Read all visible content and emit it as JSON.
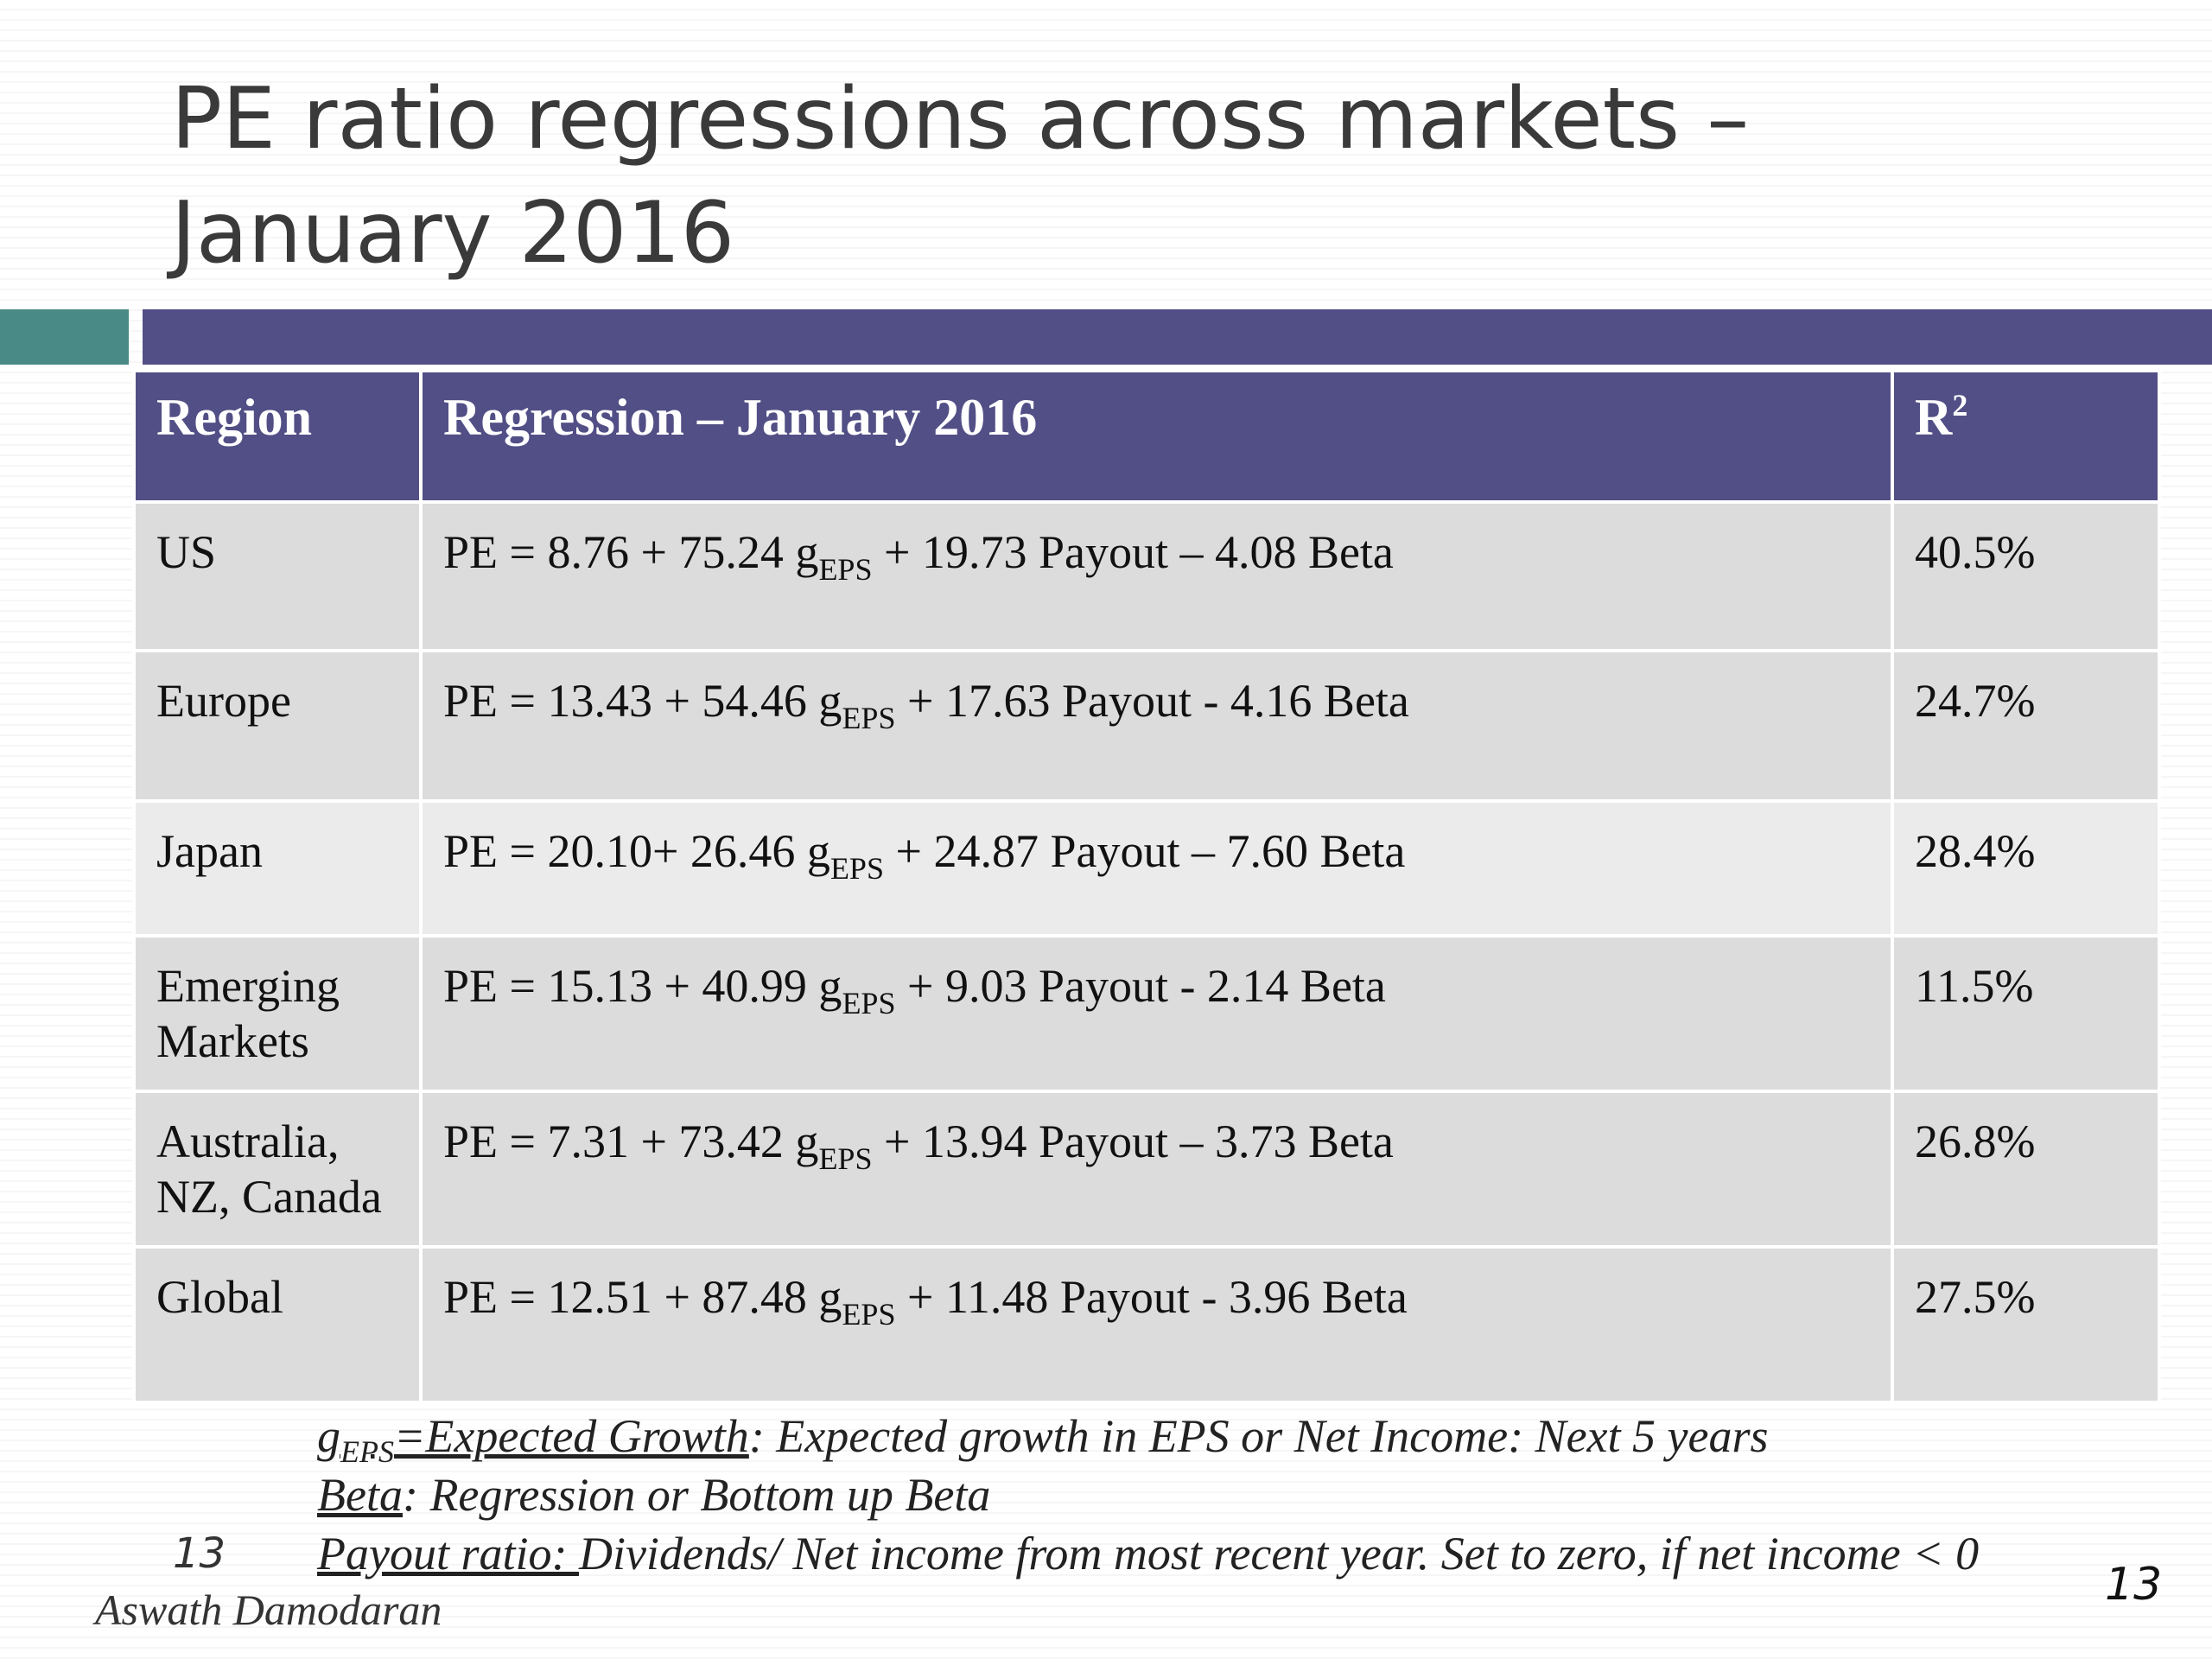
{
  "slide": {
    "title": "PE ratio regressions across markets – January 2016",
    "slide_number": "13",
    "author": "Aswath Damodaran"
  },
  "colors": {
    "header_purple": "#524f86",
    "accent_teal": "#4a8a86",
    "row_dark": "#dcdcdc",
    "row_light": "#ebebeb"
  },
  "table": {
    "headers": {
      "region": "Region",
      "regression": "Regression – January 2016",
      "r2_base": "R",
      "r2_exp": "2"
    },
    "rows": [
      {
        "region_line1": "US",
        "region_line2": "",
        "eq_pre": "PE = 8.76 + 75.24 g",
        "eq_sub": "EPS",
        "eq_post": " + 19.73 Payout – 4.08 Beta",
        "r2": "40.5%"
      },
      {
        "region_line1": "Europe",
        "region_line2": "",
        "eq_pre": "PE = 13.43 + 54.46 g",
        "eq_sub": "EPS",
        "eq_post": " + 17.63 Payout - 4.16 Beta",
        "r2": "24.7%"
      },
      {
        "region_line1": "Japan",
        "region_line2": "",
        "eq_pre": "PE = 20.10+ 26.46 g",
        "eq_sub": "EPS",
        "eq_post": " + 24.87 Payout – 7.60 Beta",
        "r2": "28.4%"
      },
      {
        "region_line1": "Emerging",
        "region_line2": "Markets",
        "eq_pre": "PE = 15.13 + 40.99 g",
        "eq_sub": "EPS",
        "eq_post": " + 9.03 Payout - 2.14 Beta",
        "r2": "11.5%"
      },
      {
        "region_line1": "Australia,",
        "region_line2": "NZ, Canada",
        "eq_pre": "PE = 7.31 + 73.42 g",
        "eq_sub": "EPS",
        "eq_post": " + 13.94 Payout – 3.73 Beta",
        "r2": "26.8%"
      },
      {
        "region_line1": "Global",
        "region_line2": "",
        "eq_pre": "PE = 12.51 + 87.48 g",
        "eq_sub": "EPS",
        "eq_post": " + 11.48 Payout - 3.96 Beta",
        "r2": "27.5%"
      }
    ]
  },
  "notes": {
    "growth_g": "g",
    "growth_sub": "EPS",
    "growth_term": "=Expected Growth",
    "growth_def": ": Expected growth in EPS or Net Income: Next 5 years",
    "beta_term": "Beta",
    "beta_def": ": Regression or Bottom up Beta",
    "payout_term": "Payout ratio: ",
    "payout_def": "Dividends/ Net income from most recent year. Set to zero, if net income < 0"
  }
}
